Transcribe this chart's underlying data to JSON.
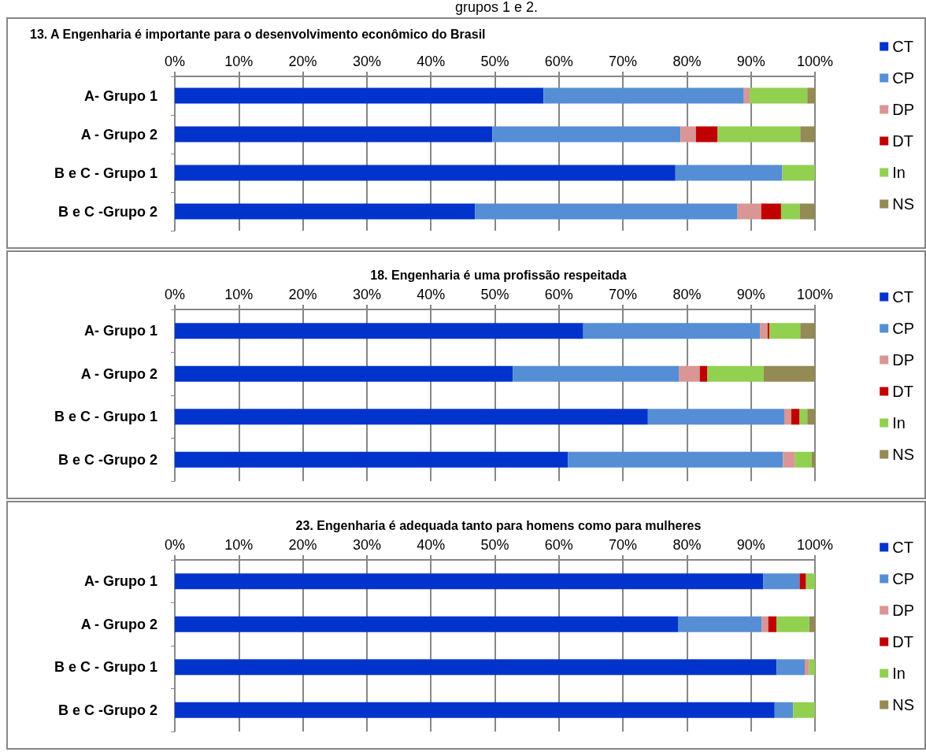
{
  "chart_data": [
    {
      "type": "bar",
      "title": "13. A Engenharia é importante para o desenvolvimento econômico do Brasil",
      "annotations": [
        "grupos 1 e 2."
      ],
      "orientation": "horizontal",
      "stacked": true,
      "grid": "x",
      "legend": "right",
      "xlim": [
        0,
        100
      ],
      "xticks": [
        {
          "value": 0,
          "label": "0%"
        },
        {
          "value": 10,
          "label": "10%"
        },
        {
          "value": 20,
          "label": "20%"
        },
        {
          "value": 30,
          "label": "30%"
        },
        {
          "value": 40,
          "label": "40%"
        },
        {
          "value": 50,
          "label": "50%"
        },
        {
          "value": 60,
          "label": "60%"
        },
        {
          "value": 70,
          "label": "70%"
        },
        {
          "value": 80,
          "label": "80%"
        },
        {
          "value": 90,
          "label": "90%"
        },
        {
          "value": 100,
          "label": "100%"
        }
      ],
      "categories": [
        "A- Grupo 1",
        "A - Grupo 2",
        "B e C - Grupo 1",
        "B e C -Grupo 2"
      ],
      "series": [
        {
          "name": "CT",
          "color": "#0033cc",
          "values": [
            57.6,
            49.6,
            78.2,
            46.9
          ]
        },
        {
          "name": "CP",
          "color": "#558ed5",
          "values": [
            31.3,
            29.4,
            16.7,
            41.0
          ]
        },
        {
          "name": "DP",
          "color": "#d99694",
          "values": [
            0.9,
            2.4,
            0,
            3.7
          ]
        },
        {
          "name": "DT",
          "color": "#c00000",
          "values": [
            0,
            3.4,
            0,
            3.1
          ]
        },
        {
          "name": "In",
          "color": "#92d050",
          "values": [
            9.0,
            12.9,
            5.1,
            2.9
          ]
        },
        {
          "name": "NS",
          "color": "#948a54",
          "values": [
            1.2,
            2.3,
            0,
            2.4
          ]
        }
      ]
    },
    {
      "type": "bar",
      "title": "18. Engenharia é uma profissão respeitada",
      "orientation": "horizontal",
      "stacked": true,
      "grid": "x",
      "legend": "right",
      "xlim": [
        0,
        100
      ],
      "xticks": [
        {
          "value": 0,
          "label": "0%"
        },
        {
          "value": 10,
          "label": "10%"
        },
        {
          "value": 20,
          "label": "20%"
        },
        {
          "value": 30,
          "label": "30%"
        },
        {
          "value": 40,
          "label": "40%"
        },
        {
          "value": 50,
          "label": "50%"
        },
        {
          "value": 60,
          "label": "60%"
        },
        {
          "value": 70,
          "label": "70%"
        },
        {
          "value": 80,
          "label": "80%"
        },
        {
          "value": 90,
          "label": "90%"
        },
        {
          "value": 100,
          "label": "100%"
        }
      ],
      "categories": [
        "A- Grupo 1",
        "A - Grupo 2",
        "B e C - Grupo 1",
        "B e C -Grupo 2"
      ],
      "series": [
        {
          "name": "CT",
          "color": "#0033cc",
          "values": [
            63.8,
            52.8,
            73.9,
            61.4
          ]
        },
        {
          "name": "CP",
          "color": "#558ed5",
          "values": [
            27.6,
            26.0,
            21.3,
            33.6
          ]
        },
        {
          "name": "DP",
          "color": "#d99694",
          "values": [
            1.2,
            3.2,
            1.1,
            1.9
          ]
        },
        {
          "name": "DT",
          "color": "#c00000",
          "values": [
            0.3,
            1.2,
            1.3,
            0
          ]
        },
        {
          "name": "In",
          "color": "#92d050",
          "values": [
            4.8,
            8.8,
            1.2,
            2.6
          ]
        },
        {
          "name": "NS",
          "color": "#948a54",
          "values": [
            2.3,
            8.0,
            1.2,
            0.5
          ]
        }
      ]
    },
    {
      "type": "bar",
      "title": "23. Engenharia é adequada tanto para homens como para mulheres",
      "orientation": "horizontal",
      "stacked": true,
      "grid": "x",
      "legend": "right",
      "xlim": [
        0,
        100
      ],
      "xticks": [
        {
          "value": 0,
          "label": "0%"
        },
        {
          "value": 10,
          "label": "10%"
        },
        {
          "value": 20,
          "label": "20%"
        },
        {
          "value": 30,
          "label": "30%"
        },
        {
          "value": 40,
          "label": "40%"
        },
        {
          "value": 50,
          "label": "50%"
        },
        {
          "value": 60,
          "label": "60%"
        },
        {
          "value": 70,
          "label": "70%"
        },
        {
          "value": 80,
          "label": "80%"
        },
        {
          "value": 90,
          "label": "90%"
        },
        {
          "value": 100,
          "label": "100%"
        }
      ],
      "categories": [
        "A- Grupo 1",
        "A - Grupo 2",
        "B e C - Grupo 1",
        "B e C -Grupo 2"
      ],
      "series": [
        {
          "name": "CT",
          "color": "#0033cc",
          "values": [
            91.9,
            78.6,
            94.0,
            93.7
          ]
        },
        {
          "name": "CP",
          "color": "#558ed5",
          "values": [
            5.7,
            13.1,
            4.4,
            2.9
          ]
        },
        {
          "name": "DP",
          "color": "#d99694",
          "values": [
            0,
            1.0,
            0.7,
            0
          ]
        },
        {
          "name": "DT",
          "color": "#c00000",
          "values": [
            1.0,
            1.3,
            0,
            0
          ]
        },
        {
          "name": "In",
          "color": "#92d050",
          "values": [
            1.4,
            5.1,
            0.9,
            3.4
          ]
        },
        {
          "name": "NS",
          "color": "#948a54",
          "values": [
            0,
            0.9,
            0,
            0
          ]
        }
      ]
    }
  ]
}
